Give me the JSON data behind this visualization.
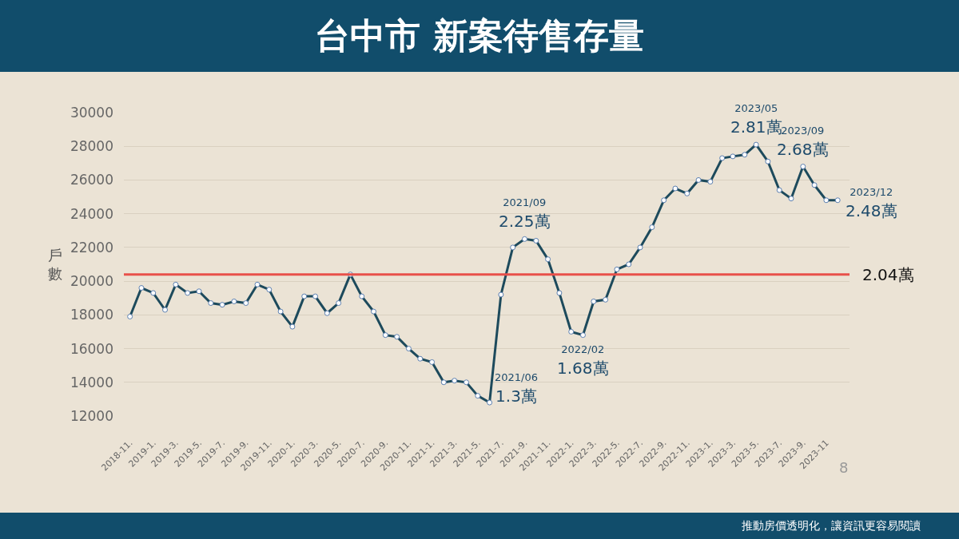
{
  "chart_data": {
    "type": "line",
    "title": "台中市 新案待售存量",
    "ylabel": "戶數",
    "x": [
      "2018-11",
      "2018-12",
      "2019-01",
      "2019-02",
      "2019-03",
      "2019-04",
      "2019-05",
      "2019-06",
      "2019-07",
      "2019-08",
      "2019-09",
      "2019-10",
      "2019-11",
      "2019-12",
      "2020-01",
      "2020-02",
      "2020-03",
      "2020-04",
      "2020-05",
      "2020-06",
      "2020-07",
      "2020-08",
      "2020-09",
      "2020-10",
      "2020-11",
      "2020-12",
      "2021-01",
      "2021-02",
      "2021-03",
      "2021-04",
      "2021-05",
      "2021-06",
      "2021-07",
      "2021-08",
      "2021-09",
      "2021-10",
      "2021-11",
      "2021-12",
      "2022-01",
      "2022-02",
      "2022-03",
      "2022-04",
      "2022-05",
      "2022-06",
      "2022-07",
      "2022-08",
      "2022-09",
      "2022-10",
      "2022-11",
      "2022-12",
      "2023-01",
      "2023-02",
      "2023-03",
      "2023-04",
      "2023-05",
      "2023-06",
      "2023-07",
      "2023-08",
      "2023-09",
      "2023-10",
      "2023-11",
      "2023-12"
    ],
    "series": [
      {
        "color": "#1d4a5c",
        "values": [
          17900,
          19600,
          19300,
          18300,
          19800,
          19300,
          19400,
          18700,
          18600,
          18800,
          18700,
          19800,
          19500,
          18200,
          17300,
          19100,
          19100,
          18100,
          18700,
          20400,
          19100,
          18200,
          16800,
          16700,
          16000,
          15400,
          15200,
          14000,
          14100,
          14000,
          13200,
          12800,
          19200,
          22000,
          22500,
          22400,
          21300,
          19300,
          17000,
          16800,
          18800,
          18900,
          20700,
          21000,
          22000,
          23200,
          24800,
          25500,
          25200,
          26000,
          25900,
          27300,
          27400,
          27500,
          28100,
          27100,
          25400,
          24900,
          26800,
          25700,
          24800,
          24800
        ]
      }
    ],
    "xlim": [
      "2018-10-16",
      "2024-01-01"
    ],
    "xticks": [
      {
        "value": "2018-11",
        "label": "2018-11."
      },
      {
        "value": "2019-01",
        "label": "2019-1."
      },
      {
        "value": "2019-03",
        "label": "2019-3."
      },
      {
        "value": "2019-05",
        "label": "2019-5."
      },
      {
        "value": "2019-07",
        "label": "2019-7."
      },
      {
        "value": "2019-09",
        "label": "2019-9."
      },
      {
        "value": "2019-11",
        "label": "2019-11."
      },
      {
        "value": "2020-01",
        "label": "2020-1."
      },
      {
        "value": "2020-03",
        "label": "2020-3."
      },
      {
        "value": "2020-05",
        "label": "2020-5."
      },
      {
        "value": "2020-07",
        "label": "2020-7."
      },
      {
        "value": "2020-09",
        "label": "2020-9."
      },
      {
        "value": "2020-11",
        "label": "2020-11."
      },
      {
        "value": "2021-01",
        "label": "2021-1."
      },
      {
        "value": "2021-03",
        "label": "2021-3."
      },
      {
        "value": "2021-05",
        "label": "2021-5."
      },
      {
        "value": "2021-07",
        "label": "2021-7."
      },
      {
        "value": "2021-09",
        "label": "2021-9."
      },
      {
        "value": "2021-11",
        "label": "2021-11."
      },
      {
        "value": "2022-01",
        "label": "2022-1."
      },
      {
        "value": "2022-03",
        "label": "2022-3."
      },
      {
        "value": "2022-05",
        "label": "2022-5."
      },
      {
        "value": "2022-07",
        "label": "2022-7."
      },
      {
        "value": "2022-09",
        "label": "2022-9."
      },
      {
        "value": "2022-11",
        "label": "2022-11."
      },
      {
        "value": "2023-01",
        "label": "2023-1."
      },
      {
        "value": "2023-03",
        "label": "2023-3."
      },
      {
        "value": "2023-05",
        "label": "2023-5."
      },
      {
        "value": "2023-07",
        "label": "2023-7."
      },
      {
        "value": "2023-09",
        "label": "2023-9."
      },
      {
        "value": "2023-11",
        "label": "2023-11"
      }
    ],
    "ylim": [
      12000,
      30000
    ],
    "yticks": [
      12000,
      14000,
      16000,
      18000,
      20000,
      22000,
      24000,
      26000,
      28000,
      30000
    ],
    "grid": "y",
    "marker": "circle",
    "line_style": "solid",
    "ref_lines": [
      {
        "axis": "y",
        "value": 20400,
        "label": "2.04萬",
        "color": "#e8504a"
      }
    ],
    "annotations": [
      {
        "text": "2021/06\n1.3萬",
        "x": "2021-06",
        "y": 12800
      },
      {
        "text": "2021/09\n2.25萬",
        "x": "2021-09",
        "y": 22500
      },
      {
        "text": "2022/02\n1.68萬",
        "x": "2022-02",
        "y": 16800
      },
      {
        "text": "2023/05\n2.81萬",
        "x": "2023-05",
        "y": 28100
      },
      {
        "text": "2023/09\n2.68萬",
        "x": "2023-09",
        "y": 26800
      },
      {
        "text": "2023/12\n2.48萬",
        "x": "2023-12",
        "y": 24800
      },
      "8",
      "推動房價透明化，讓資訊更容易閱讀"
    ]
  }
}
